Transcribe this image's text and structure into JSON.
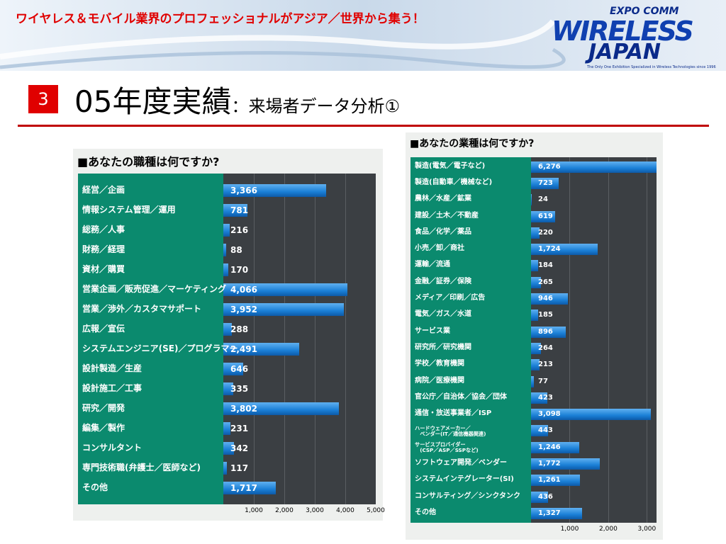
{
  "header": {
    "tagline": "ワイヤレス＆モバイル業界のプロフェッショナルがアジア／世界から集う！",
    "logo_top": "EXPO COMM",
    "logo_line1": "WIRELESS",
    "logo_line2": "JAPAN",
    "logo_sub": "The Only One Exhibition Specialized in Wireless Technologies since 1996",
    "section_number": "3",
    "title": "05年度実績",
    "subtitle": "：来場者データ分析①"
  },
  "chart_data": [
    {
      "type": "barh",
      "title": "■あなたの職種は何ですか?",
      "categories": [
        "経営／企画",
        "情報システム管理／運用",
        "総務／人事",
        "財務／経理",
        "資材／購買",
        "営業企画／販売促進／マーケティング",
        "営業／渉外／カスタマサポート",
        "広報／宣伝",
        "システムエンジニア(SE)／プログラマー",
        "設計製造／生産",
        "設計施工／工事",
        "研究／開発",
        "編集／製作",
        "コンサルタント",
        "専門技術職(弁護士／医師など)",
        "その他"
      ],
      "values": [
        3366,
        781,
        216,
        88,
        170,
        4066,
        3952,
        288,
        2491,
        646,
        335,
        3802,
        231,
        342,
        117,
        1717
      ],
      "value_labels": [
        "3,366",
        "781",
        "216",
        "88",
        "170",
        "4,066",
        "3,952",
        "288",
        "2,491",
        "646",
        "335",
        "3,802",
        "231",
        "342",
        "117",
        "1,717"
      ],
      "color": "#1a7fd6",
      "xlim": [
        0,
        5000
      ],
      "xticks": [
        {
          "value": 1000,
          "label": "1,000"
        },
        {
          "value": 2000,
          "label": "2,000"
        },
        {
          "value": 3000,
          "label": "3,000"
        },
        {
          "value": 4000,
          "label": "4,000"
        },
        {
          "value": 5000,
          "label": "5,000"
        }
      ],
      "grid": true
    },
    {
      "type": "barh",
      "title": "■あなたの業種は何ですか?",
      "categories": [
        "製造(電気／電子など)",
        "製造(自動車／機械など)",
        "農林／水産／鉱業",
        "建設／土木／不動産",
        "食品／化学／薬品",
        "小売／卸／商社",
        "運輸／流通",
        "金融／証券／保険",
        "メディア／印刷／広告",
        "電気／ガス／水道",
        "サービス業",
        "研究所／研究機関",
        "学校／教育機関",
        "病院／医療機関",
        "官公庁／自治体／協会／団体",
        "通信・放送事業者／ISP",
        "ハードウェアメーカー／\n　ベンダー(IT／通信機器関連)",
        "サービスプロバイダー\n　(CSP／ASP／SSPなど)",
        "ソフトウェア開発／ベンダー",
        "システムインテグレーター(SI)",
        "コンサルティング／シンクタンク",
        "その他"
      ],
      "values": [
        6276,
        723,
        24,
        619,
        220,
        1724,
        184,
        265,
        946,
        185,
        896,
        264,
        213,
        77,
        423,
        3098,
        443,
        1246,
        1772,
        1261,
        436,
        1327
      ],
      "value_labels": [
        "6,276",
        "723",
        "24",
        "619",
        "220",
        "1,724",
        "184",
        "265",
        "946",
        "185",
        "896",
        "264",
        "213",
        "77",
        "423",
        "3,098",
        "443",
        "1,246",
        "1,772",
        "1,261",
        "436",
        "1,327"
      ],
      "color": "#1a7fd6",
      "xlim": [
        0,
        3250
      ],
      "xticks": [
        {
          "value": 1000,
          "label": "1,000"
        },
        {
          "value": 2000,
          "label": "2,000"
        },
        {
          "value": 3000,
          "label": "3,000"
        }
      ],
      "grid": true
    }
  ]
}
